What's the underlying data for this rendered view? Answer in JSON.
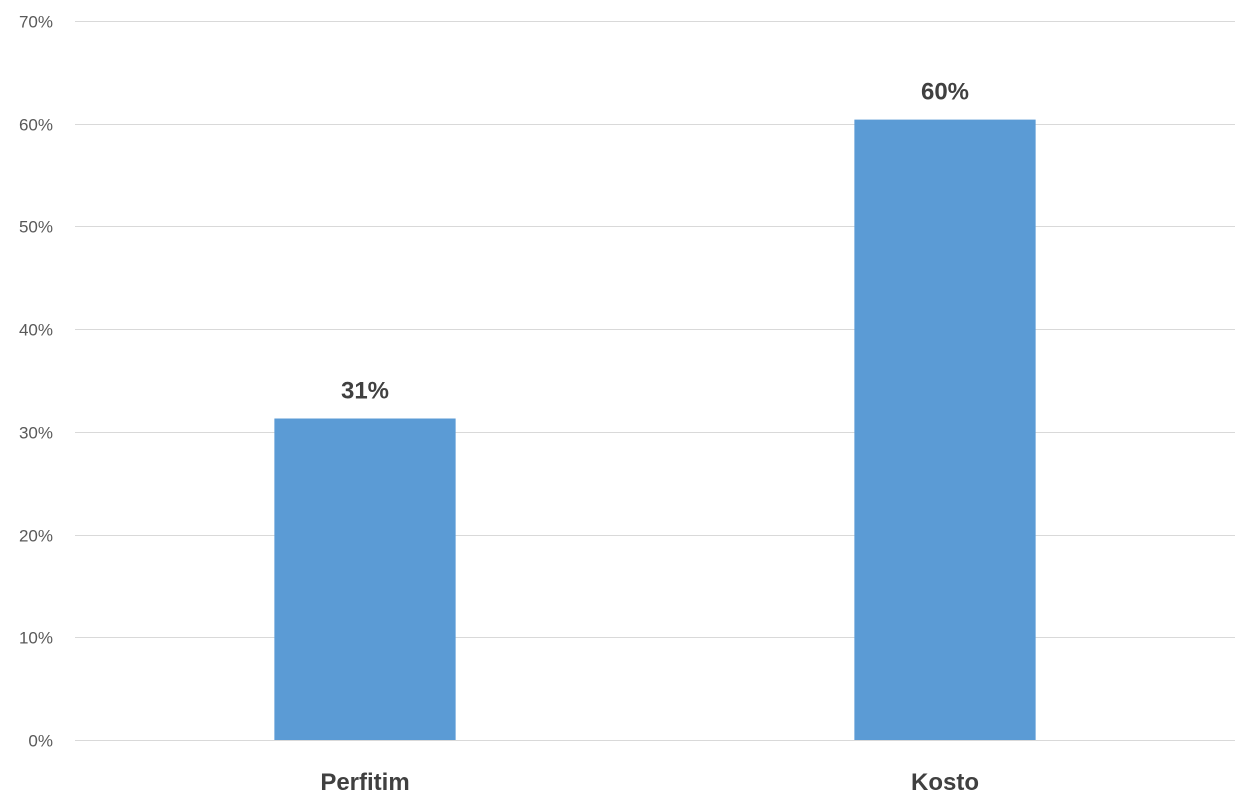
{
  "chart_data": {
    "type": "bar",
    "categories": [
      "Perfitim",
      "Kosto"
    ],
    "values": [
      31.3,
      60.4
    ],
    "data_labels": [
      "31%",
      "60%"
    ],
    "title": "",
    "xlabel": "",
    "ylabel": "",
    "ylim": [
      0,
      70
    ],
    "y_ticks": [
      0,
      10,
      20,
      30,
      40,
      50,
      60,
      70
    ],
    "y_tick_labels": [
      "0%",
      "10%",
      "20%",
      "30%",
      "40%",
      "50%",
      "60%",
      "70%"
    ],
    "grid": true,
    "legend": "none",
    "bar_color": "#5b9bd5"
  }
}
